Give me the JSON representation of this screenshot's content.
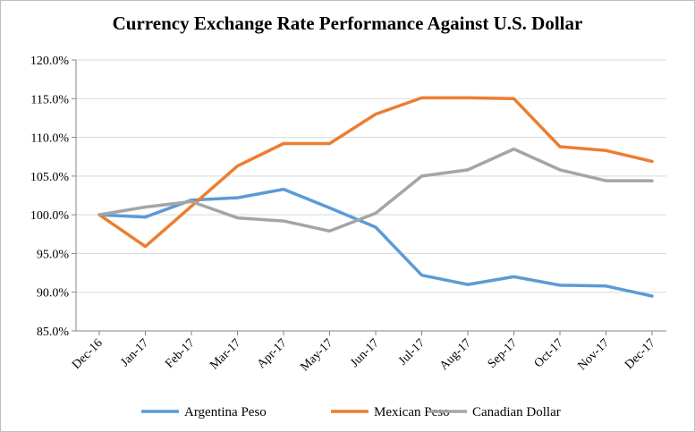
{
  "chart_data": {
    "type": "line",
    "title": "Currency Exchange Rate Performance Against U.S. Dollar",
    "xlabel": "",
    "ylabel": "",
    "categories": [
      "Dec-16",
      "Jan-17",
      "Feb-17",
      "Mar-17",
      "Apr-17",
      "May-17",
      "Jun-17",
      "Jul-17",
      "Aug-17",
      "Sep-17",
      "Oct-17",
      "Nov-17",
      "Dec-17"
    ],
    "ylim": [
      85,
      120
    ],
    "yticks": [
      85,
      90,
      95,
      100,
      105,
      110,
      115,
      120
    ],
    "ytick_labels": [
      "85.0%",
      "90.0%",
      "95.0%",
      "100.0%",
      "105.0%",
      "110.0%",
      "115.0%",
      "120.0%"
    ],
    "grid": "horizontal",
    "legend_position": "bottom",
    "series": [
      {
        "name": "Argentina Peso",
        "color": "#5b9bd5",
        "values": [
          100.0,
          99.7,
          101.9,
          102.2,
          103.3,
          100.9,
          98.4,
          92.2,
          91.0,
          92.0,
          90.9,
          90.8,
          89.5
        ]
      },
      {
        "name": "Mexican Peso",
        "color": "#ed7d31",
        "values": [
          100.0,
          95.9,
          101.1,
          106.3,
          109.2,
          109.2,
          113.0,
          115.1,
          115.1,
          115.0,
          108.8,
          108.3,
          106.9
        ]
      },
      {
        "name": "Canadian Dollar",
        "color": "#a5a5a5",
        "values": [
          100.0,
          101.0,
          101.7,
          99.6,
          99.2,
          97.9,
          100.2,
          105.0,
          105.8,
          108.5,
          105.8,
          104.4,
          104.4
        ]
      }
    ]
  }
}
